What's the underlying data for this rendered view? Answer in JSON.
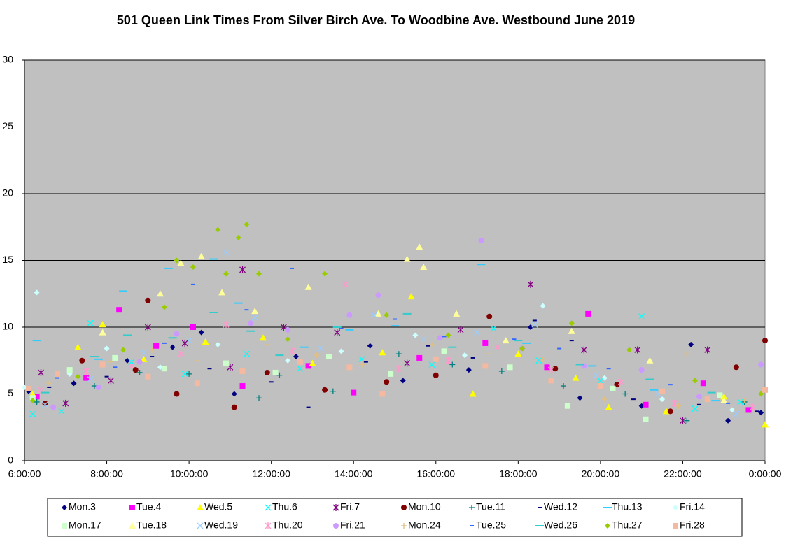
{
  "chart_data": {
    "type": "scatter",
    "title": "501 Queen Link Times From Silver Birch Ave. To Woodbine Ave. Westbound June 2019",
    "xlim": [
      6,
      24
    ],
    "xticks": [
      {
        "value": 6,
        "label": "6:00:00"
      },
      {
        "value": 8,
        "label": "8:00:00"
      },
      {
        "value": 10,
        "label": "10:00:00"
      },
      {
        "value": 12,
        "label": "12:00:00"
      },
      {
        "value": 14,
        "label": "14:00:00"
      },
      {
        "value": 16,
        "label": "16:00:00"
      },
      {
        "value": 18,
        "label": "18:00:00"
      },
      {
        "value": 20,
        "label": "20:00:00"
      },
      {
        "value": 22,
        "label": "22:00:00"
      },
      {
        "value": 24,
        "label": "0:00:00"
      }
    ],
    "ylim": [
      0,
      30
    ],
    "yticks": [
      0,
      5,
      10,
      15,
      20,
      25,
      30
    ],
    "grid": true,
    "series": [
      {
        "name": "Mon.3",
        "color": "#000080",
        "marker": "diamond",
        "x": [
          6.1,
          7.2,
          8.5,
          9.6,
          10.3,
          11.1,
          12.6,
          14.4,
          15.2,
          16.8,
          18.3,
          19.5,
          21.0,
          22.2,
          23.1,
          23.9
        ],
        "values": [
          5.2,
          5.8,
          7.5,
          8.5,
          9.6,
          5.0,
          7.8,
          8.6,
          6.0,
          6.8,
          10.0,
          4.7,
          4.1,
          8.7,
          3.0,
          3.6
        ]
      },
      {
        "name": "Tue.4",
        "color": "#ff00ff",
        "marker": "square",
        "x": [
          6.3,
          7.5,
          8.3,
          9.2,
          10.1,
          11.3,
          12.9,
          14.0,
          15.6,
          17.2,
          18.7,
          19.7,
          21.1,
          22.5,
          23.6
        ],
        "values": [
          4.8,
          6.2,
          11.3,
          8.6,
          10.0,
          5.6,
          7.1,
          5.1,
          7.7,
          8.8,
          7.0,
          11.0,
          4.2,
          5.8,
          3.8
        ]
      },
      {
        "name": "Wed.5",
        "color": "#ffff00",
        "marker": "triangle",
        "x": [
          6.2,
          7.3,
          7.9,
          8.9,
          10.4,
          11.8,
          13.0,
          14.7,
          15.4,
          16.9,
          18.0,
          19.4,
          20.2,
          21.6,
          23.0,
          24.0
        ],
        "values": [
          5.0,
          8.5,
          10.2,
          7.6,
          8.9,
          9.2,
          7.3,
          8.1,
          12.3,
          5.0,
          8.0,
          6.2,
          4.0,
          3.7,
          4.8,
          2.7
        ]
      },
      {
        "name": "Thu.6",
        "color": "#00ffff",
        "marker": "x",
        "x": [
          6.2,
          6.9,
          7.6,
          8.6,
          9.9,
          11.4,
          12.7,
          14.2,
          15.9,
          17.4,
          18.5,
          20.0,
          21.0,
          22.3,
          23.4
        ],
        "values": [
          3.5,
          3.7,
          10.3,
          7.4,
          6.5,
          8.0,
          6.9,
          7.6,
          7.2,
          9.9,
          7.5,
          6.0,
          10.8,
          3.9,
          4.4
        ]
      },
      {
        "name": "Fri.7",
        "color": "#800080",
        "marker": "star",
        "x": [
          6.4,
          7.0,
          8.1,
          9.0,
          9.9,
          11.0,
          11.3,
          12.3,
          13.6,
          15.3,
          16.6,
          18.3,
          19.6,
          20.9,
          22.0,
          22.6
        ],
        "values": [
          6.6,
          4.3,
          6.0,
          10.0,
          8.8,
          7.0,
          14.3,
          10.0,
          9.6,
          7.3,
          9.8,
          13.2,
          8.3,
          8.3,
          3.0,
          8.3
        ]
      },
      {
        "name": "Mon.10",
        "color": "#800000",
        "marker": "circle",
        "x": [
          6.5,
          7.4,
          8.7,
          9.0,
          9.7,
          11.1,
          11.9,
          13.3,
          14.8,
          16.0,
          17.3,
          18.9,
          20.4,
          21.7,
          23.3,
          24.0
        ],
        "values": [
          4.3,
          7.5,
          6.8,
          12.0,
          5.0,
          4.0,
          6.6,
          5.3,
          5.9,
          6.4,
          10.8,
          6.9,
          5.7,
          3.7,
          7.0,
          9.0
        ]
      },
      {
        "name": "Tue.11",
        "color": "#008080",
        "marker": "plus",
        "x": [
          6.3,
          7.7,
          8.8,
          10.0,
          11.7,
          12.2,
          13.5,
          15.1,
          16.4,
          17.6,
          19.1,
          20.6,
          22.1,
          23.5
        ],
        "values": [
          4.4,
          5.6,
          6.6,
          6.5,
          4.7,
          6.4,
          5.2,
          8.0,
          7.2,
          6.7,
          5.6,
          5.0,
          3.0,
          4.4
        ]
      },
      {
        "name": "Wed.12",
        "color": "#000080",
        "marker": "dash",
        "x": [
          6.6,
          8.0,
          9.1,
          10.5,
          12.0,
          12.9,
          14.3,
          15.8,
          16.9,
          18.4,
          19.3,
          20.8,
          22.4,
          23.8
        ],
        "values": [
          5.5,
          6.3,
          7.8,
          6.9,
          5.9,
          4.0,
          7.4,
          8.6,
          7.7,
          10.5,
          9.0,
          4.6,
          4.2,
          3.7
        ]
      },
      {
        "name": "Thu.13",
        "color": "#33ccff",
        "marker": "longdash",
        "x": [
          6.3,
          7.8,
          8.4,
          9.5,
          10.6,
          11.2,
          12.8,
          13.9,
          15.0,
          17.1,
          18.2,
          19.8,
          21.3,
          22.8
        ],
        "values": [
          9.0,
          7.6,
          12.7,
          14.4,
          15.1,
          11.8,
          8.5,
          9.8,
          10.1,
          14.7,
          8.8,
          7.1,
          5.3,
          4.5
        ]
      },
      {
        "name": "Fri.14",
        "color": "#ccffff",
        "marker": "diamond",
        "x": [
          6.0,
          6.3,
          7.1,
          8.0,
          9.3,
          10.7,
          12.4,
          13.7,
          15.5,
          16.7,
          18.6,
          20.1,
          21.5,
          23.2
        ],
        "values": [
          5.5,
          12.6,
          6.5,
          8.4,
          7.0,
          8.7,
          7.5,
          8.2,
          9.4,
          7.9,
          11.6,
          6.2,
          4.6,
          3.8
        ]
      },
      {
        "name": "Mon.17",
        "color": "#ccffcc",
        "marker": "square",
        "x": [
          6.2,
          7.1,
          8.2,
          9.4,
          10.9,
          12.1,
          13.4,
          14.9,
          16.2,
          17.8,
          19.2,
          20.3,
          21.1,
          22.9
        ],
        "values": [
          4.7,
          6.8,
          7.7,
          6.9,
          7.3,
          6.6,
          7.8,
          6.5,
          8.2,
          7.0,
          4.1,
          5.4,
          3.1,
          4.9
        ]
      },
      {
        "name": "Tue.18",
        "color": "#ffff99",
        "marker": "triangle",
        "x": [
          7.9,
          9.3,
          9.8,
          10.3,
          10.8,
          11.6,
          12.9,
          14.6,
          15.3,
          15.6,
          15.7,
          16.5,
          17.7,
          19.3,
          21.2,
          23.0
        ],
        "values": [
          9.6,
          12.5,
          14.8,
          15.3,
          12.6,
          11.2,
          13.0,
          11.0,
          15.1,
          16.0,
          14.5,
          11.0,
          9.0,
          9.7,
          7.5,
          4.5
        ]
      },
      {
        "name": "Wed.19",
        "color": "#99ccff",
        "marker": "x",
        "x": [
          6.5,
          7.6,
          8.9,
          10.0,
          10.9,
          11.6,
          13.2,
          14.5,
          15.7,
          17.0,
          18.4,
          19.9,
          21.4,
          23.3
        ],
        "values": [
          4.2,
          6.1,
          8.1,
          9.0,
          15.6,
          10.7,
          8.4,
          10.9,
          9.1,
          9.6,
          10.2,
          6.4,
          5.0,
          3.5
        ]
      },
      {
        "name": "Thu.20",
        "color": "#ff99cc",
        "marker": "star",
        "x": [
          6.4,
          7.5,
          8.6,
          9.8,
          10.9,
          12.5,
          13.8,
          15.1,
          16.3,
          17.5,
          18.8,
          20.5,
          21.8,
          23.7
        ],
        "values": [
          5.3,
          6.7,
          7.1,
          8.0,
          10.2,
          8.2,
          13.2,
          6.9,
          7.5,
          8.5,
          6.8,
          5.9,
          4.3,
          4.0
        ]
      },
      {
        "name": "Fri.21",
        "color": "#cc99ff",
        "marker": "circle",
        "x": [
          6.7,
          7.8,
          8.8,
          9.7,
          11.5,
          12.4,
          13.9,
          14.6,
          16.1,
          17.1,
          18.1,
          19.6,
          21.0,
          22.4,
          23.9
        ],
        "values": [
          4.0,
          5.5,
          7.4,
          9.5,
          10.3,
          9.8,
          10.9,
          12.4,
          9.2,
          16.5,
          8.4,
          7.1,
          6.8,
          4.8,
          7.2
        ]
      },
      {
        "name": "Mon.24",
        "color": "#e0c080",
        "marker": "plus",
        "x": [
          6.6,
          8.1,
          9.1,
          10.2,
          11.9,
          13.1,
          14.2,
          15.9,
          17.3,
          18.6,
          20.1,
          21.9,
          22.1,
          23.5
        ],
        "values": [
          5.8,
          7.4,
          8.3,
          7.5,
          8.7,
          7.9,
          7.2,
          8.7,
          8.0,
          7.6,
          4.6,
          4.1,
          8.0,
          4.5
        ]
      },
      {
        "name": "Tue.25",
        "color": "#3366ff",
        "marker": "dash",
        "x": [
          6.8,
          8.2,
          9.4,
          10.1,
          11.4,
          12.5,
          13.7,
          15.0,
          16.2,
          17.9,
          19.0,
          20.2,
          21.7,
          23.1
        ],
        "values": [
          6.2,
          7.0,
          8.8,
          13.2,
          11.3,
          14.4,
          9.9,
          10.6,
          9.3,
          9.1,
          8.4,
          6.9,
          5.7,
          4.3
        ]
      },
      {
        "name": "Wed.26",
        "color": "#33cccc",
        "marker": "longdash",
        "x": [
          6.5,
          7.7,
          8.5,
          9.6,
          10.6,
          11.5,
          12.2,
          13.6,
          15.3,
          16.4,
          18.0,
          19.5,
          21.2,
          22.7
        ],
        "values": [
          5.1,
          7.8,
          9.4,
          9.2,
          11.1,
          9.7,
          7.9,
          10.0,
          11.0,
          8.5,
          9.0,
          7.2,
          6.1,
          5.1
        ]
      },
      {
        "name": "Thu.27",
        "color": "#99cc00",
        "marker": "diamond",
        "x": [
          6.2,
          7.3,
          8.4,
          9.4,
          9.7,
          10.1,
          10.7,
          10.9,
          11.2,
          11.4,
          11.7,
          12.4,
          13.3,
          14.8,
          16.3,
          18.1,
          19.3,
          20.7,
          22.3,
          23.9
        ],
        "values": [
          4.5,
          6.3,
          8.3,
          11.5,
          15.0,
          14.5,
          17.3,
          14.0,
          16.7,
          17.7,
          14.0,
          9.1,
          14.0,
          10.9,
          9.4,
          8.4,
          10.3,
          8.3,
          6.0,
          5.0
        ]
      },
      {
        "name": "Fri.28",
        "color": "#f5b8a0",
        "marker": "square",
        "x": [
          6.1,
          6.8,
          7.9,
          9.0,
          10.2,
          11.3,
          12.7,
          13.9,
          14.7,
          16.0,
          17.2,
          18.8,
          20.0,
          21.5,
          22.6,
          24.0
        ],
        "values": [
          5.4,
          6.5,
          7.2,
          6.3,
          5.8,
          6.7,
          7.4,
          7.0,
          5.0,
          7.6,
          7.1,
          6.0,
          5.6,
          5.2,
          4.6,
          5.3
        ]
      }
    ]
  }
}
